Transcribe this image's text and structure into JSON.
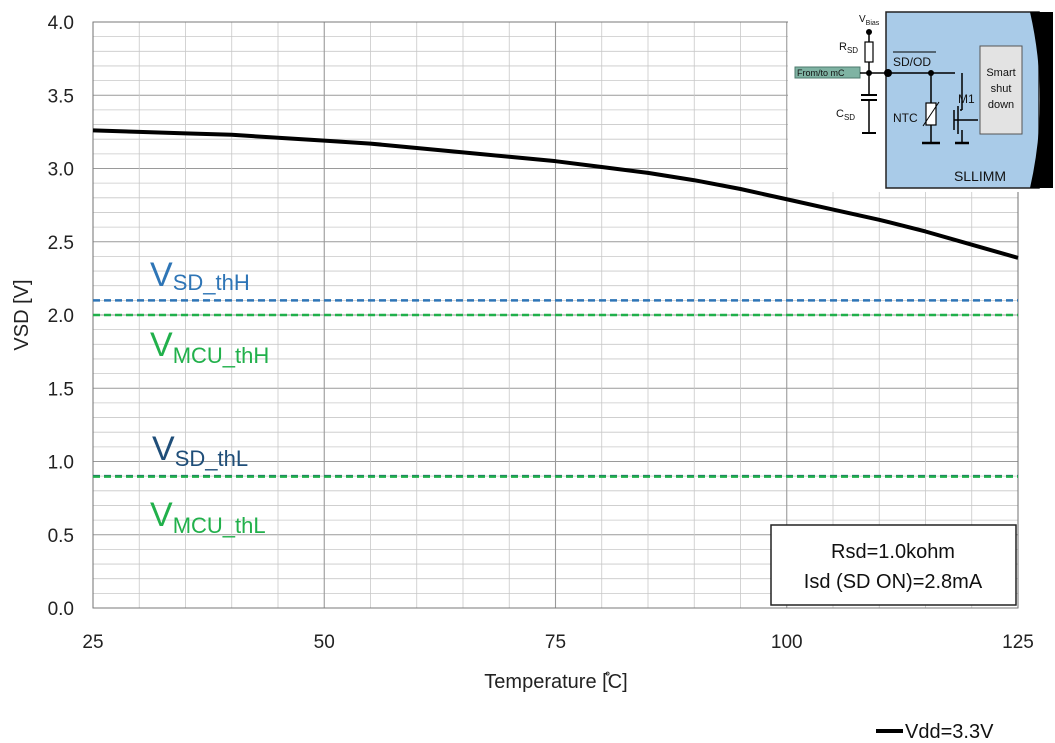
{
  "chart_data": {
    "type": "line",
    "xlabel": "Temperature [̊C]",
    "ylabel": "VSD [V]",
    "xlim": [
      25,
      125
    ],
    "ylim": [
      0.0,
      4.0
    ],
    "x_ticks": [
      "25",
      "50",
      "75",
      "100",
      "125"
    ],
    "y_ticks": [
      "0.0",
      "0.5",
      "1.0",
      "1.5",
      "2.0",
      "2.5",
      "3.0",
      "3.5",
      "4.0"
    ],
    "grid": true,
    "legend_position": "bottom-right",
    "series": [
      {
        "name": "Vdd=3.3V",
        "color": "#000000",
        "x": [
          25,
          30,
          35,
          40,
          45,
          50,
          55,
          60,
          65,
          70,
          75,
          80,
          85,
          90,
          95,
          100,
          105,
          110,
          115,
          120,
          125
        ],
        "values": [
          3.26,
          3.25,
          3.24,
          3.23,
          3.21,
          3.19,
          3.17,
          3.14,
          3.11,
          3.08,
          3.05,
          3.01,
          2.97,
          2.92,
          2.86,
          2.79,
          2.72,
          2.65,
          2.57,
          2.48,
          2.39
        ]
      }
    ],
    "thresholds": [
      {
        "label_main": "V",
        "label_sub": "SD_thH",
        "value": 2.1,
        "color": "#2e75b6"
      },
      {
        "label_main": "V",
        "label_sub": "MCU_thH",
        "value": 2.0,
        "color": "#21b04b"
      },
      {
        "label_main": "V",
        "label_sub": "SD_thL",
        "value": 0.9,
        "color": "#1f4e79"
      },
      {
        "label_main": "V",
        "label_sub": "MCU_thL",
        "value": 0.9,
        "color": "#21b04b"
      }
    ],
    "annotation": [
      "Rsd=1.0kohm",
      "Isd (SD ON)=2.8mA"
    ]
  },
  "inset": {
    "vbias": "V",
    "vbias_sub": "Bias",
    "rsd": "R",
    "rsd_sub": "SD",
    "csd": "C",
    "csd_sub": "SD",
    "sdod": "SD/OD",
    "from_to": "From/to mC",
    "ntc": "NTC",
    "m1": "M1",
    "smart_lines": [
      "Smart",
      "shut",
      "down"
    ],
    "sllimm": "SLLIMM",
    "bg_color": "#a9cbe8"
  }
}
